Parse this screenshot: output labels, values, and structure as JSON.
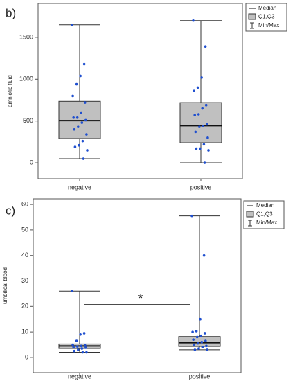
{
  "chart_data": [
    {
      "type": "box",
      "panel_label": "b)",
      "y_label": "amniotic fluid",
      "categories": [
        "negative",
        "positive"
      ],
      "ylim": [
        -190,
        1905
      ],
      "yticks": [
        0,
        500,
        1000,
        1500
      ],
      "box_color": "#c0c0c0",
      "point_color": "#1f4fcf",
      "legend_labels": [
        "Median",
        "Q1,Q3",
        "Min/Max"
      ],
      "boxes": [
        {
          "min": 50,
          "q1": 290,
          "median": 505,
          "q3": 735,
          "max": 1650,
          "points": [
            1650,
            1180,
            1040,
            940,
            800,
            720,
            600,
            540,
            540,
            510,
            480,
            430,
            400,
            340,
            260,
            210,
            190,
            150,
            50
          ]
        },
        {
          "min": 0,
          "q1": 240,
          "median": 445,
          "q3": 720,
          "max": 1700,
          "points": [
            1700,
            1390,
            1020,
            900,
            860,
            690,
            650,
            580,
            570,
            460,
            440,
            430,
            370,
            300,
            220,
            170,
            170,
            150,
            0
          ]
        }
      ]
    },
    {
      "type": "box",
      "panel_label": "c)",
      "y_label": "umbilical blood",
      "categories": [
        "negative",
        "positive"
      ],
      "ylim": [
        -6,
        62.2
      ],
      "yticks": [
        0,
        10,
        20,
        30,
        40,
        50,
        60
      ],
      "box_color": "#c0c0c0",
      "point_color": "#1f4fcf",
      "legend_labels": [
        "Median",
        "Q1,Q3",
        "Min/Max"
      ],
      "annotation": "*",
      "boxes": [
        {
          "min": 2,
          "q1": 3.5,
          "median": 4.5,
          "q3": 5.3,
          "max": 26,
          "points": [
            26,
            9.5,
            9,
            6.5,
            5,
            4.8,
            4.5,
            4.3,
            4,
            3.8,
            3.5,
            3,
            2.5,
            2,
            2
          ]
        },
        {
          "min": 3,
          "q1": 4.3,
          "median": 5.8,
          "q3": 8.2,
          "max": 55.5,
          "points": [
            55.5,
            40,
            15,
            10.3,
            10,
            9.5,
            8.5,
            8,
            7,
            6.5,
            6,
            5.5,
            5,
            4.5,
            4,
            3.5,
            3,
            3
          ]
        }
      ]
    }
  ]
}
